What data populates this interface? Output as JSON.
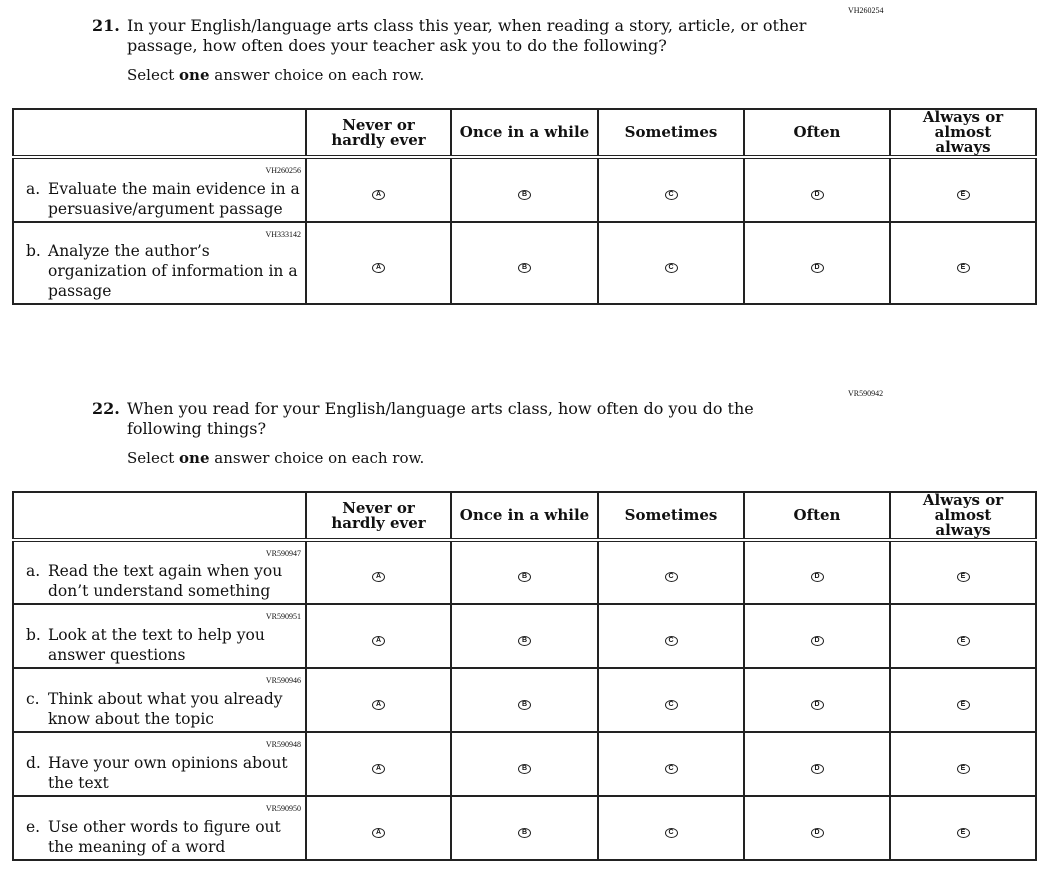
{
  "questions": [
    {
      "code": "VH260254",
      "number": "21.",
      "text": "In your English/language arts class this year, when reading a story, article, or other passage, how often does your teacher ask you to do the following?",
      "instruction_pre": "Select ",
      "instruction_bold": "one",
      "instruction_post": " answer choice on each row.",
      "rows": [
        {
          "id": "VH260256",
          "letter": "a.",
          "label": "Evaluate the main evidence in a persuasive/argument passage"
        },
        {
          "id": "VH333142",
          "letter": "b.",
          "label": "Analyze the author’s organization of information in a passage"
        }
      ]
    },
    {
      "code": "VR590942",
      "number": "22.",
      "text": "When you read for your English/language arts class, how often do you do the following things?",
      "instruction_pre": "Select ",
      "instruction_bold": "one",
      "instruction_post": " answer choice on each row.",
      "rows": [
        {
          "id": "VR590947",
          "letter": "a.",
          "label": "Read the text again when you don’t understand something"
        },
        {
          "id": "VR590951",
          "letter": "b.",
          "label": "Look at the text to help you answer questions"
        },
        {
          "id": "VR590946",
          "letter": "c.",
          "label": "Think about what you already know about the topic"
        },
        {
          "id": "VR590948",
          "letter": "d.",
          "label": "Have your own opinions about the text"
        },
        {
          "id": "VR590950",
          "letter": "e.",
          "label": "Use other words to figure out the meaning of a word"
        }
      ]
    }
  ],
  "columns": [
    "Never or hardly ever",
    "Once in a while",
    "Sometimes",
    "Often",
    "Always or almost always"
  ],
  "bubbles": [
    "A",
    "B",
    "C",
    "D",
    "E"
  ]
}
